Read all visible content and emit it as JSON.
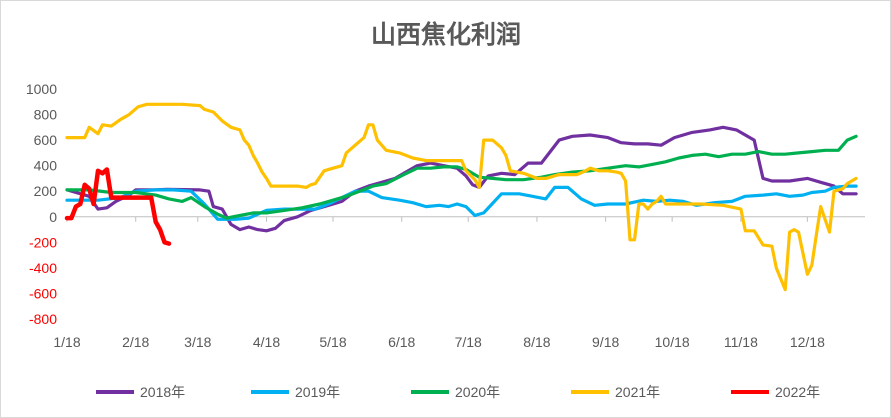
{
  "chart_data": {
    "type": "line",
    "title": "山西焦化利润",
    "xlabel": "",
    "ylabel": "",
    "ylim": [
      -800,
      1000
    ],
    "yticks": [
      1000,
      800,
      600,
      400,
      200,
      0,
      -200,
      -400,
      -600,
      -800
    ],
    "xlim": [
      0,
      360
    ],
    "x_ticks": [
      {
        "label": "1/18",
        "day": 0
      },
      {
        "label": "2/18",
        "day": 31
      },
      {
        "label": "3/18",
        "day": 59
      },
      {
        "label": "4/18",
        "day": 90
      },
      {
        "label": "5/18",
        "day": 120
      },
      {
        "label": "6/18",
        "day": 151
      },
      {
        "label": "7/18",
        "day": 181
      },
      {
        "label": "8/18",
        "day": 212
      },
      {
        "label": "9/18",
        "day": 243
      },
      {
        "label": "10/18",
        "day": 273
      },
      {
        "label": "11/18",
        "day": 304
      },
      {
        "label": "12/18",
        "day": 334
      }
    ],
    "grid": false,
    "legend_position": "bottom",
    "negative_tick_color": "#ff0000",
    "positive_tick_color": "#595959",
    "series": [
      {
        "name": "2018年",
        "color": "#7030a0",
        "points": [
          [
            0,
            210
          ],
          [
            10,
            160
          ],
          [
            14,
            60
          ],
          [
            18,
            70
          ],
          [
            22,
            120
          ],
          [
            28,
            170
          ],
          [
            31,
            210
          ],
          [
            40,
            210
          ],
          [
            45,
            215
          ],
          [
            60,
            210
          ],
          [
            64,
            200
          ],
          [
            66,
            80
          ],
          [
            70,
            60
          ],
          [
            74,
            -60
          ],
          [
            78,
            -100
          ],
          [
            82,
            -80
          ],
          [
            86,
            -100
          ],
          [
            90,
            -110
          ],
          [
            94,
            -90
          ],
          [
            98,
            -30
          ],
          [
            104,
            0
          ],
          [
            110,
            50
          ],
          [
            118,
            90
          ],
          [
            124,
            120
          ],
          [
            130,
            200
          ],
          [
            136,
            240
          ],
          [
            142,
            270
          ],
          [
            148,
            300
          ],
          [
            152,
            340
          ],
          [
            158,
            400
          ],
          [
            164,
            420
          ],
          [
            170,
            400
          ],
          [
            176,
            380
          ],
          [
            180,
            320
          ],
          [
            183,
            250
          ],
          [
            186,
            230
          ],
          [
            190,
            320
          ],
          [
            196,
            340
          ],
          [
            202,
            330
          ],
          [
            208,
            420
          ],
          [
            214,
            420
          ],
          [
            222,
            600
          ],
          [
            228,
            630
          ],
          [
            236,
            640
          ],
          [
            244,
            620
          ],
          [
            250,
            580
          ],
          [
            256,
            570
          ],
          [
            262,
            570
          ],
          [
            268,
            560
          ],
          [
            274,
            620
          ],
          [
            282,
            660
          ],
          [
            290,
            680
          ],
          [
            296,
            700
          ],
          [
            302,
            680
          ],
          [
            306,
            640
          ],
          [
            310,
            600
          ],
          [
            314,
            300
          ],
          [
            318,
            280
          ],
          [
            326,
            280
          ],
          [
            334,
            300
          ],
          [
            340,
            270
          ],
          [
            346,
            240
          ],
          [
            350,
            180
          ],
          [
            356,
            180
          ]
        ]
      },
      {
        "name": "2019年",
        "color": "#00b0f0",
        "points": [
          [
            0,
            130
          ],
          [
            14,
            130
          ],
          [
            24,
            150
          ],
          [
            31,
            200
          ],
          [
            40,
            210
          ],
          [
            48,
            210
          ],
          [
            56,
            200
          ],
          [
            62,
            100
          ],
          [
            68,
            -20
          ],
          [
            76,
            -20
          ],
          [
            82,
            -10
          ],
          [
            90,
            50
          ],
          [
            98,
            60
          ],
          [
            106,
            60
          ],
          [
            112,
            60
          ],
          [
            118,
            100
          ],
          [
            124,
            150
          ],
          [
            130,
            200
          ],
          [
            136,
            200
          ],
          [
            142,
            150
          ],
          [
            150,
            130
          ],
          [
            156,
            110
          ],
          [
            162,
            80
          ],
          [
            168,
            90
          ],
          [
            172,
            80
          ],
          [
            176,
            100
          ],
          [
            180,
            80
          ],
          [
            184,
            10
          ],
          [
            188,
            30
          ],
          [
            196,
            180
          ],
          [
            204,
            180
          ],
          [
            210,
            160
          ],
          [
            216,
            140
          ],
          [
            220,
            230
          ],
          [
            226,
            230
          ],
          [
            232,
            140
          ],
          [
            238,
            90
          ],
          [
            244,
            100
          ],
          [
            252,
            100
          ],
          [
            260,
            130
          ],
          [
            266,
            120
          ],
          [
            272,
            130
          ],
          [
            278,
            120
          ],
          [
            284,
            90
          ],
          [
            292,
            110
          ],
          [
            300,
            120
          ],
          [
            306,
            160
          ],
          [
            314,
            170
          ],
          [
            320,
            180
          ],
          [
            326,
            160
          ],
          [
            332,
            170
          ],
          [
            336,
            190
          ],
          [
            342,
            200
          ],
          [
            346,
            230
          ],
          [
            352,
            240
          ],
          [
            356,
            240
          ]
        ]
      },
      {
        "name": "2020年",
        "color": "#00b050",
        "points": [
          [
            0,
            210
          ],
          [
            10,
            210
          ],
          [
            20,
            190
          ],
          [
            31,
            190
          ],
          [
            40,
            170
          ],
          [
            46,
            140
          ],
          [
            52,
            120
          ],
          [
            56,
            150
          ],
          [
            62,
            80
          ],
          [
            68,
            20
          ],
          [
            72,
            -10
          ],
          [
            78,
            10
          ],
          [
            84,
            30
          ],
          [
            90,
            30
          ],
          [
            98,
            50
          ],
          [
            106,
            70
          ],
          [
            114,
            100
          ],
          [
            120,
            130
          ],
          [
            126,
            160
          ],
          [
            132,
            200
          ],
          [
            138,
            240
          ],
          [
            144,
            260
          ],
          [
            152,
            330
          ],
          [
            158,
            380
          ],
          [
            164,
            380
          ],
          [
            170,
            390
          ],
          [
            176,
            390
          ],
          [
            180,
            370
          ],
          [
            186,
            310
          ],
          [
            192,
            300
          ],
          [
            198,
            290
          ],
          [
            206,
            290
          ],
          [
            214,
            310
          ],
          [
            220,
            330
          ],
          [
            228,
            350
          ],
          [
            236,
            360
          ],
          [
            244,
            380
          ],
          [
            252,
            400
          ],
          [
            258,
            390
          ],
          [
            264,
            410
          ],
          [
            270,
            430
          ],
          [
            276,
            460
          ],
          [
            282,
            480
          ],
          [
            288,
            490
          ],
          [
            294,
            470
          ],
          [
            300,
            490
          ],
          [
            306,
            490
          ],
          [
            312,
            510
          ],
          [
            318,
            490
          ],
          [
            324,
            490
          ],
          [
            330,
            500
          ],
          [
            336,
            510
          ],
          [
            342,
            520
          ],
          [
            348,
            520
          ],
          [
            352,
            600
          ],
          [
            356,
            630
          ]
        ]
      },
      {
        "name": "2021年",
        "color": "#ffc000",
        "points": [
          [
            0,
            620
          ],
          [
            8,
            620
          ],
          [
            10,
            700
          ],
          [
            14,
            650
          ],
          [
            16,
            720
          ],
          [
            20,
            710
          ],
          [
            24,
            760
          ],
          [
            28,
            800
          ],
          [
            32,
            860
          ],
          [
            36,
            880
          ],
          [
            40,
            880
          ],
          [
            46,
            880
          ],
          [
            52,
            880
          ],
          [
            60,
            870
          ],
          [
            62,
            840
          ],
          [
            66,
            820
          ],
          [
            70,
            750
          ],
          [
            74,
            700
          ],
          [
            78,
            680
          ],
          [
            80,
            600
          ],
          [
            82,
            560
          ],
          [
            84,
            480
          ],
          [
            86,
            420
          ],
          [
            88,
            350
          ],
          [
            90,
            300
          ],
          [
            92,
            240
          ],
          [
            96,
            240
          ],
          [
            104,
            240
          ],
          [
            108,
            230
          ],
          [
            110,
            250
          ],
          [
            112,
            260
          ],
          [
            116,
            360
          ],
          [
            120,
            380
          ],
          [
            124,
            400
          ],
          [
            126,
            500
          ],
          [
            130,
            560
          ],
          [
            134,
            620
          ],
          [
            136,
            720
          ],
          [
            138,
            720
          ],
          [
            140,
            600
          ],
          [
            144,
            520
          ],
          [
            150,
            500
          ],
          [
            156,
            460
          ],
          [
            162,
            440
          ],
          [
            168,
            440
          ],
          [
            174,
            440
          ],
          [
            178,
            440
          ],
          [
            180,
            360
          ],
          [
            184,
            290
          ],
          [
            186,
            230
          ],
          [
            188,
            600
          ],
          [
            192,
            600
          ],
          [
            196,
            540
          ],
          [
            198,
            480
          ],
          [
            200,
            360
          ],
          [
            206,
            340
          ],
          [
            212,
            300
          ],
          [
            216,
            300
          ],
          [
            222,
            330
          ],
          [
            226,
            330
          ],
          [
            230,
            330
          ],
          [
            234,
            360
          ],
          [
            236,
            380
          ],
          [
            240,
            360
          ],
          [
            244,
            360
          ],
          [
            248,
            350
          ],
          [
            250,
            340
          ],
          [
            252,
            280
          ],
          [
            254,
            -180
          ],
          [
            256,
            -180
          ],
          [
            258,
            100
          ],
          [
            260,
            100
          ],
          [
            262,
            60
          ],
          [
            264,
            100
          ],
          [
            266,
            120
          ],
          [
            268,
            160
          ],
          [
            270,
            100
          ],
          [
            276,
            100
          ],
          [
            286,
            100
          ],
          [
            296,
            90
          ],
          [
            304,
            60
          ],
          [
            306,
            -110
          ],
          [
            310,
            -110
          ],
          [
            314,
            -220
          ],
          [
            318,
            -230
          ],
          [
            320,
            -400
          ],
          [
            324,
            -570
          ],
          [
            326,
            -120
          ],
          [
            328,
            -100
          ],
          [
            330,
            -120
          ],
          [
            334,
            -450
          ],
          [
            336,
            -380
          ],
          [
            338,
            -150
          ],
          [
            340,
            80
          ],
          [
            344,
            -120
          ],
          [
            346,
            200
          ],
          [
            350,
            220
          ],
          [
            352,
            260
          ],
          [
            356,
            300
          ]
        ]
      },
      {
        "name": "2022年",
        "color": "#ff0000",
        "points": [
          [
            0,
            -10
          ],
          [
            2,
            -10
          ],
          [
            4,
            80
          ],
          [
            6,
            100
          ],
          [
            8,
            250
          ],
          [
            10,
            220
          ],
          [
            12,
            100
          ],
          [
            14,
            360
          ],
          [
            16,
            340
          ],
          [
            18,
            370
          ],
          [
            20,
            150
          ],
          [
            24,
            150
          ],
          [
            28,
            150
          ],
          [
            32,
            150
          ],
          [
            36,
            150
          ],
          [
            38,
            150
          ],
          [
            40,
            -40
          ],
          [
            42,
            -100
          ],
          [
            44,
            -200
          ],
          [
            46,
            -210
          ]
        ]
      }
    ]
  }
}
